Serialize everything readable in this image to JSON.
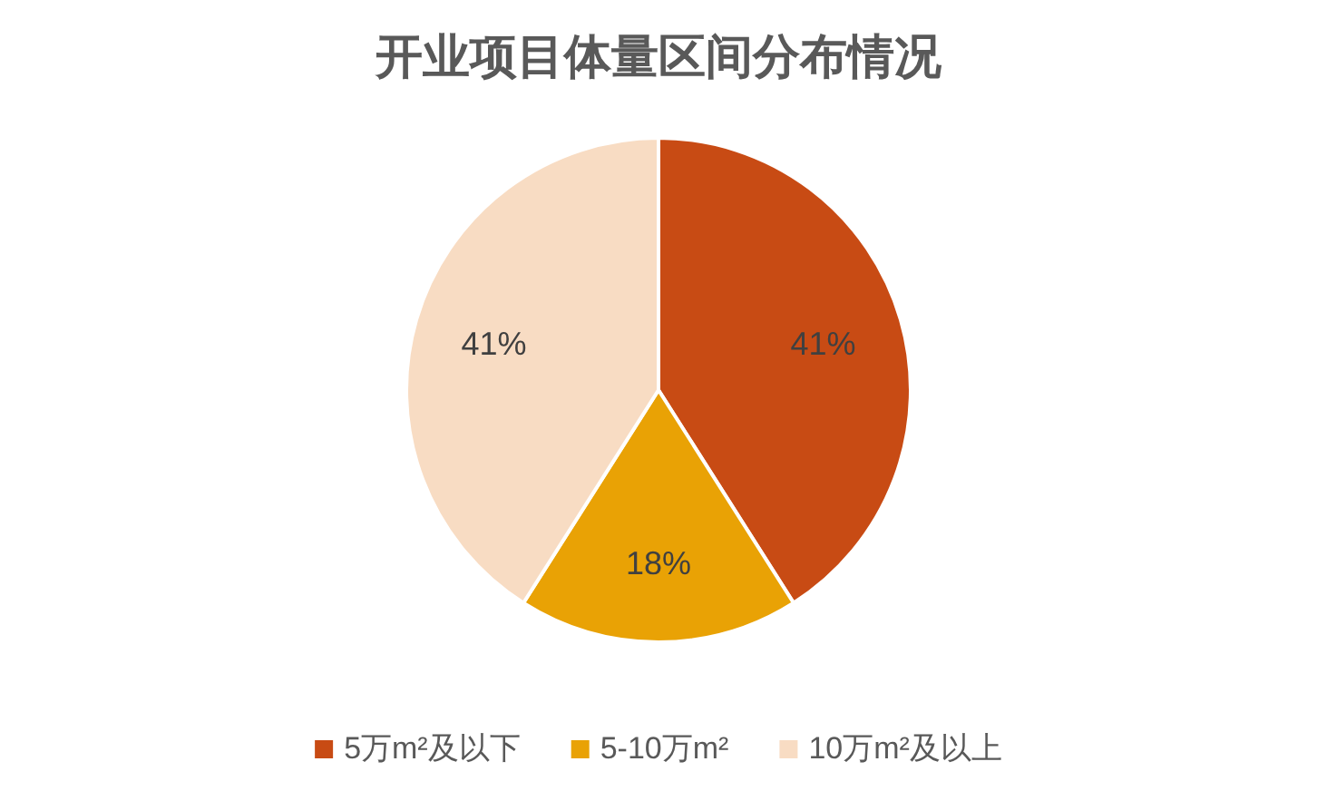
{
  "chart_data": {
    "type": "pie",
    "title": "开业项目体量区间分布情况",
    "categories": [
      "5万m²及以下",
      "5-10万m²",
      "10万m²及以上"
    ],
    "values": [
      41,
      18,
      41
    ],
    "colors": [
      "#c84b14",
      "#e9a205",
      "#f8dcc3"
    ],
    "value_labels": [
      "41%",
      "18%",
      "41%"
    ],
    "legend": "bottom"
  }
}
